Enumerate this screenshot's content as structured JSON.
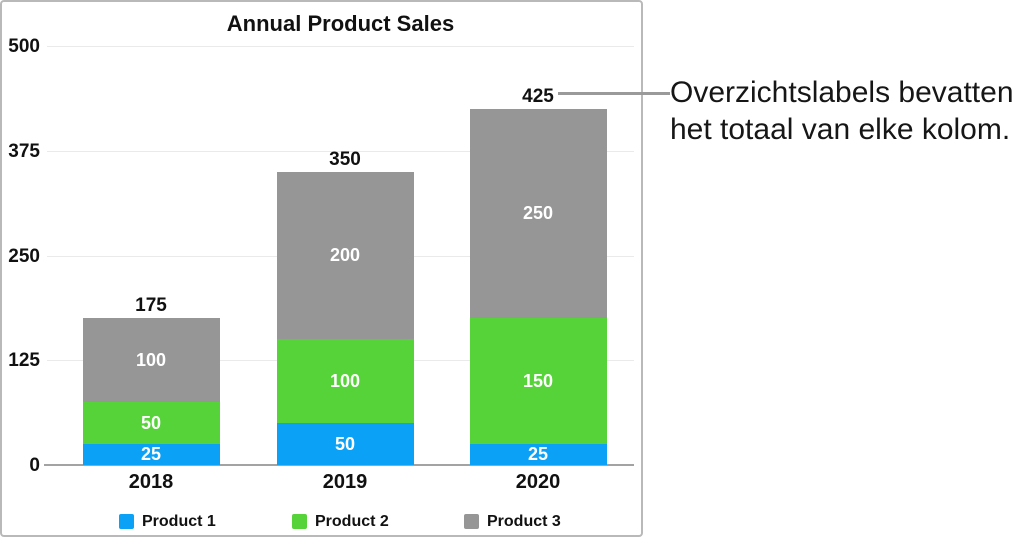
{
  "chart_data": {
    "type": "bar",
    "stacked": true,
    "title": "Annual Product Sales",
    "categories": [
      "2018",
      "2019",
      "2020"
    ],
    "series": [
      {
        "name": "Product 1",
        "color": "#0aa1f7",
        "values": [
          25,
          50,
          25
        ]
      },
      {
        "name": "Product 2",
        "color": "#55d338",
        "values": [
          50,
          100,
          150
        ]
      },
      {
        "name": "Product 3",
        "color": "#969696",
        "values": [
          100,
          200,
          250
        ]
      }
    ],
    "totals": [
      175,
      350,
      425
    ],
    "y_ticks": [
      0,
      125,
      250,
      375,
      500
    ],
    "ylim": [
      0,
      500
    ],
    "grid": true,
    "legend_position": "bottom"
  },
  "annotation": {
    "lines": [
      "Overzichtslabels bevatten",
      "het totaal van elke kolom."
    ],
    "target_total_label": "425"
  },
  "colors": {
    "grid_line": "#eaeaea",
    "axis_line": "#a3a3a3",
    "panel_border": "#b9b9b9",
    "callout_line": "#9a9a9a",
    "segment_label_text": "#ffffff",
    "text": "#111111"
  }
}
